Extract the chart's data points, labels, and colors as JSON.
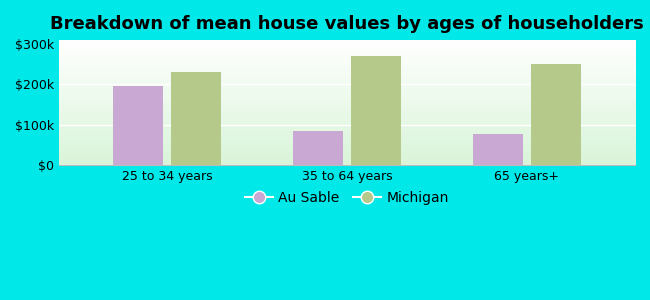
{
  "title": "Breakdown of mean house values by ages of householders",
  "categories": [
    "25 to 34 years",
    "35 to 64 years",
    "65 years+"
  ],
  "au_sable_values": [
    197000,
    85000,
    78000
  ],
  "michigan_values": [
    232000,
    270000,
    250000
  ],
  "au_sable_color": "#c9a8d4",
  "michigan_color": "#b5c98a",
  "background_outer": "#00e8e8",
  "ylim": [
    0,
    310000
  ],
  "yticks": [
    0,
    100000,
    200000,
    300000
  ],
  "ytick_labels": [
    "$0",
    "$100k",
    "$200k",
    "$300k"
  ],
  "legend_au_sable": "Au Sable",
  "legend_michigan": "Michigan",
  "bar_width": 0.28,
  "title_fontsize": 13,
  "axis_fontsize": 9,
  "legend_fontsize": 10
}
